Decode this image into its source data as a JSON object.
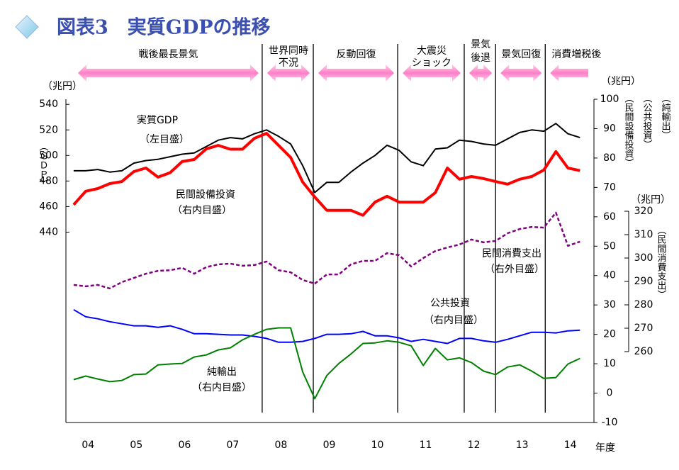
{
  "chart_data": {
    "type": "line",
    "title": "図表3　実質GDPの推移",
    "x_axis_label": "年度",
    "y_axis_label": "（ＧＤＰ）",
    "y_unit": "（兆円）",
    "y2_unit": "（兆円）",
    "y2_axis_labels": [
      "（民間設備投資）",
      "（公共投資）",
      "（純輸出）"
    ],
    "y3_unit": "（兆円）",
    "y3_axis_label": "（民間消費支出）",
    "x": [
      2004,
      2004.25,
      2004.5,
      2004.75,
      2005,
      2005.25,
      2005.5,
      2005.75,
      2006,
      2006.25,
      2006.5,
      2006.75,
      2007,
      2007.25,
      2007.5,
      2007.75,
      2008,
      2008.25,
      2008.5,
      2008.75,
      2009,
      2009.25,
      2009.5,
      2009.75,
      2010,
      2010.25,
      2010.5,
      2010.75,
      2011,
      2011.25,
      2011.5,
      2011.75,
      2012,
      2012.25,
      2012.5,
      2012.75,
      2013,
      2013.25,
      2013.5,
      2013.75,
      2014,
      2014.25,
      2014.5
    ],
    "xlim": [
      2003.84,
      2014.79
    ],
    "xticks": [
      {
        "value": 2004.3,
        "label": "04"
      },
      {
        "value": 2005.3,
        "label": "05"
      },
      {
        "value": 2006.3,
        "label": "06"
      },
      {
        "value": 2007.3,
        "label": "07"
      },
      {
        "value": 2008.3,
        "label": "08"
      },
      {
        "value": 2009.3,
        "label": "09"
      },
      {
        "value": 2010.3,
        "label": "10"
      },
      {
        "value": 2011.3,
        "label": "11"
      },
      {
        "value": 2012.3,
        "label": "12"
      },
      {
        "value": 2013.3,
        "label": "13"
      },
      {
        "value": 2014.3,
        "label": "14"
      }
    ],
    "ylim": [
      291,
      544
    ],
    "yticks": [
      440,
      460,
      480,
      500,
      520,
      540
    ],
    "y2lim": [
      -10,
      100
    ],
    "y2ticks": [
      -10,
      0,
      10,
      20,
      30,
      40,
      50,
      60,
      70,
      80,
      90,
      100
    ],
    "y3lim": [
      260,
      320
    ],
    "y3ticks": [
      260,
      270,
      280,
      290,
      300,
      310,
      320
    ],
    "period_boundaries": [
      2007.91,
      2008.97,
      2010.72,
      2012.1,
      2012.75,
      2013.78
    ],
    "periods": [
      [
        "戦後最長景気"
      ],
      [
        "世界同時",
        "不況"
      ],
      [
        "反動回復"
      ],
      [
        "大震災",
        "ショック"
      ],
      [
        "景気",
        "後退"
      ],
      [
        "景気回復"
      ],
      [
        "消費増税後"
      ]
    ],
    "series": [
      {
        "name": "実質GDP",
        "scale_note": "（左目盛）",
        "axis": "y",
        "color": "#000000",
        "values": [
          488,
          488,
          489,
          487,
          488,
          494,
          496,
          497,
          499,
          501,
          502,
          507,
          512,
          514,
          513,
          517,
          520,
          515,
          509,
          492,
          471,
          479,
          479,
          487,
          494,
          500,
          508,
          504,
          495,
          492,
          505,
          506,
          512,
          511,
          509,
          508,
          513,
          518,
          520,
          519,
          525,
          517,
          514
        ]
      },
      {
        "name": "民間設備投資",
        "scale_note": "（右内目盛）",
        "axis": "y2",
        "color": "#ff0000",
        "values": [
          64.1,
          68.7,
          69.6,
          71.3,
          72,
          75.4,
          76.6,
          73.5,
          75,
          78.8,
          79.5,
          83.1,
          84.3,
          83,
          83,
          86.7,
          88.4,
          84.3,
          80.2,
          71.8,
          66.7,
          62.2,
          62.2,
          62.2,
          60.5,
          65,
          67,
          65,
          65,
          65,
          68.2,
          76.6,
          72.8,
          73.7,
          73,
          72,
          71.1,
          72.8,
          73.7,
          75.9,
          82.2,
          76.6,
          75.7
        ]
      },
      {
        "name": "民間消費支出",
        "scale_note": "（右外目盛）",
        "axis": "y3",
        "color": "#800080",
        "values": [
          288.5,
          287.9,
          288.5,
          287,
          289.7,
          291.5,
          293.3,
          294.5,
          294.8,
          295.8,
          293.3,
          296.1,
          297.3,
          297.6,
          296.7,
          297,
          298.5,
          294.8,
          293.9,
          290.6,
          289.1,
          293,
          293,
          297.3,
          298.8,
          298.8,
          302.1,
          301.2,
          296.4,
          300,
          303,
          304.5,
          305.8,
          307.9,
          306.7,
          307.3,
          310.6,
          312.4,
          313.3,
          313,
          319.4,
          305.2,
          307
        ]
      },
      {
        "name": "公共投資",
        "scale_note": "（右内目盛）",
        "axis": "y2",
        "color": "#0000ff",
        "values": [
          28.4,
          26,
          25.3,
          24.3,
          23.6,
          22.9,
          22.9,
          22.4,
          22.9,
          21.7,
          20.2,
          20.2,
          20,
          19.8,
          19.8,
          19.3,
          18.6,
          17.3,
          17.3,
          17.6,
          18.6,
          20,
          20,
          20.2,
          21,
          19.5,
          19.5,
          18.8,
          17.6,
          18.3,
          17.6,
          16.9,
          18.6,
          18.6,
          17.8,
          17.3,
          18.3,
          19.5,
          20.7,
          20.7,
          20.5,
          21.2,
          21.4
        ]
      },
      {
        "name": "純輸出",
        "scale_note": "（右内目盛）",
        "axis": "y2",
        "color": "#008000",
        "values": [
          4.6,
          5.8,
          4.8,
          3.9,
          4.3,
          6.3,
          6.5,
          9.6,
          9.9,
          10.1,
          12.3,
          13,
          14.7,
          15.4,
          18.1,
          20,
          21.7,
          22.2,
          22.2,
          7.2,
          -1.9,
          6,
          10.1,
          13.3,
          16.9,
          17.1,
          17.8,
          17.3,
          16.1,
          9.4,
          15.2,
          11.3,
          12,
          10.4,
          7.5,
          6.3,
          8.9,
          9.6,
          7.5,
          5,
          5.3,
          9.9,
          11.8
        ]
      }
    ]
  }
}
